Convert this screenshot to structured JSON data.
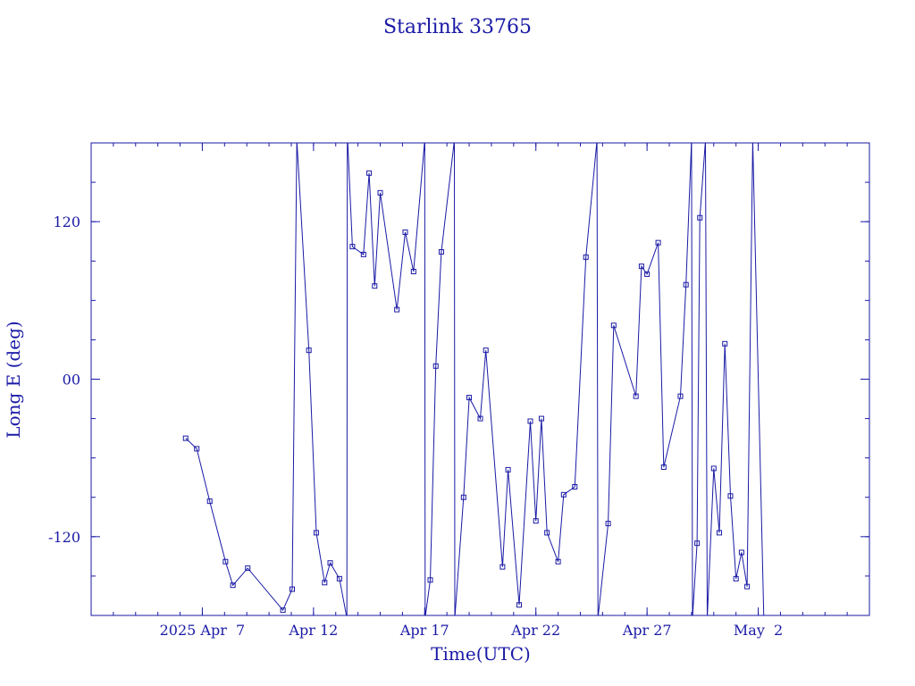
{
  "chart_data": {
    "type": "line",
    "title": "Starlink 33765",
    "xlabel": "Time(UTC)",
    "ylabel": "Long E (deg)",
    "x_unit": "days (2025)",
    "xlim": [
      "2025-04-02",
      "2025-05-07"
    ],
    "ylim": [
      -180,
      180
    ],
    "x_ticks": [
      {
        "date": "2025-04-07",
        "label": "2025 Apr  7"
      },
      {
        "date": "2025-04-12",
        "label": "Apr 12"
      },
      {
        "date": "2025-04-17",
        "label": "Apr 17"
      },
      {
        "date": "2025-04-22",
        "label": "Apr 22"
      },
      {
        "date": "2025-04-27",
        "label": "Apr 27"
      },
      {
        "date": "2025-05-02",
        "label": "May  2"
      }
    ],
    "y_ticks": [
      {
        "value": 120,
        "label": "120"
      },
      {
        "value": 0,
        "label": "00"
      },
      {
        "value": -120,
        "label": "-120"
      }
    ],
    "grid": false,
    "color": "#1a1aa6",
    "series": [
      {
        "points": [
          [
            "2025-04-06 06:00",
            -45
          ],
          [
            "2025-04-06 18:00",
            -53
          ],
          [
            "2025-04-07 08:00",
            -93
          ],
          [
            "2025-04-08 01:00",
            -139
          ],
          [
            "2025-04-08 09:00",
            -157
          ],
          [
            "2025-04-09 01:00",
            -144
          ],
          [
            "2025-04-10 15:00",
            -176
          ],
          [
            "2025-04-11 01:00",
            -160
          ],
          [
            "2025-04-11 06:00",
            182
          ],
          [
            "2025-04-11 19:00",
            22
          ],
          [
            "2025-04-12 03:00",
            -117
          ],
          [
            "2025-04-12 12:00",
            -155
          ],
          [
            "2025-04-12 18:00",
            -140
          ],
          [
            "2025-04-13 04:00",
            -152
          ],
          [
            "2025-04-13 12:00",
            -182
          ],
          [
            "2025-04-13 12:30",
            182
          ],
          [
            "2025-04-13 13:00",
            180
          ],
          [
            "2025-04-13 18:00",
            101
          ],
          [
            "2025-04-14 06:00",
            95
          ],
          [
            "2025-04-14 12:00",
            157
          ],
          [
            "2025-04-14 18:00",
            71
          ],
          [
            "2025-04-15 00:00",
            142
          ],
          [
            "2025-04-15 18:00",
            53
          ],
          [
            "2025-04-16 03:00",
            112
          ],
          [
            "2025-04-16 12:00",
            82
          ],
          [
            "2025-04-17 00:00",
            182
          ],
          [
            "2025-04-17 00:30",
            -182
          ],
          [
            "2025-04-17 06:00",
            -153
          ],
          [
            "2025-04-17 12:00",
            10
          ],
          [
            "2025-04-17 18:00",
            97
          ],
          [
            "2025-04-18 08:00",
            182
          ],
          [
            "2025-04-18 08:30",
            -182
          ],
          [
            "2025-04-18 18:00",
            -90
          ],
          [
            "2025-04-19 00:00",
            -14
          ],
          [
            "2025-04-19 12:00",
            -30
          ],
          [
            "2025-04-19 18:00",
            22
          ],
          [
            "2025-04-20 12:00",
            -143
          ],
          [
            "2025-04-20 18:00",
            -69
          ],
          [
            "2025-04-21 06:00",
            -172
          ],
          [
            "2025-04-21 18:00",
            -32
          ],
          [
            "2025-04-22 00:00",
            -108
          ],
          [
            "2025-04-22 06:00",
            -30
          ],
          [
            "2025-04-22 12:00",
            -117
          ],
          [
            "2025-04-23 00:00",
            -139
          ],
          [
            "2025-04-23 06:00",
            -88
          ],
          [
            "2025-04-23 18:00",
            -82
          ],
          [
            "2025-04-24 06:00",
            93
          ],
          [
            "2025-04-24 18:00",
            182
          ],
          [
            "2025-04-24 19:00",
            -182
          ],
          [
            "2025-04-25 06:00",
            -110
          ],
          [
            "2025-04-25 12:00",
            41
          ],
          [
            "2025-04-26 12:00",
            -13
          ],
          [
            "2025-04-26 18:00",
            86
          ],
          [
            "2025-04-27 00:00",
            80
          ],
          [
            "2025-04-27 12:00",
            104
          ],
          [
            "2025-04-27 18:00",
            -67
          ],
          [
            "2025-04-28 12:00",
            -13
          ],
          [
            "2025-04-28 18:00",
            72
          ],
          [
            "2025-04-29 00:00",
            182
          ],
          [
            "2025-04-29 01:00",
            -182
          ],
          [
            "2025-04-29 06:00",
            -125
          ],
          [
            "2025-04-29 09:00",
            123
          ],
          [
            "2025-04-29 15:00",
            182
          ],
          [
            "2025-04-29 17:00",
            -182
          ],
          [
            "2025-04-30 00:00",
            -68
          ],
          [
            "2025-04-30 06:00",
            -117
          ],
          [
            "2025-04-30 12:00",
            27
          ],
          [
            "2025-04-30 18:00",
            -89
          ],
          [
            "2025-05-01 00:00",
            -152
          ],
          [
            "2025-05-01 06:00",
            -132
          ],
          [
            "2025-05-01 12:00",
            -158
          ],
          [
            "2025-05-01 18:00",
            182
          ],
          [
            "2025-05-02 06:00",
            -182
          ]
        ]
      }
    ]
  }
}
